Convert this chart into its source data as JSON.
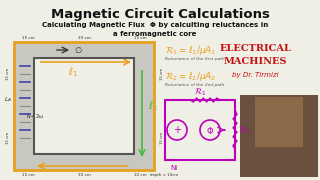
{
  "bg_color": "#f0efe6",
  "title": "Magnetic Circuit Calculations",
  "subtitle1": "Calculating Magnetic Flux  Φ by calculting reluctances in",
  "subtitle2": "a ferromagnetic core",
  "title_color": "#111111",
  "subtitle_color": "#111111",
  "outer_rect_color": "#e8a020",
  "inner_rect_color": "#606060",
  "r1_color": "#e8a020",
  "r2_color": "#e8a020",
  "l2_color": "#40bb40",
  "reluctance1_label": "Reluctance of the first path",
  "reluctance2_label": "Reluctance of the 2nd path",
  "electrical_machines_color": "#c41010",
  "circuit_color": "#bb00bb",
  "coil_color": "#4040aa"
}
